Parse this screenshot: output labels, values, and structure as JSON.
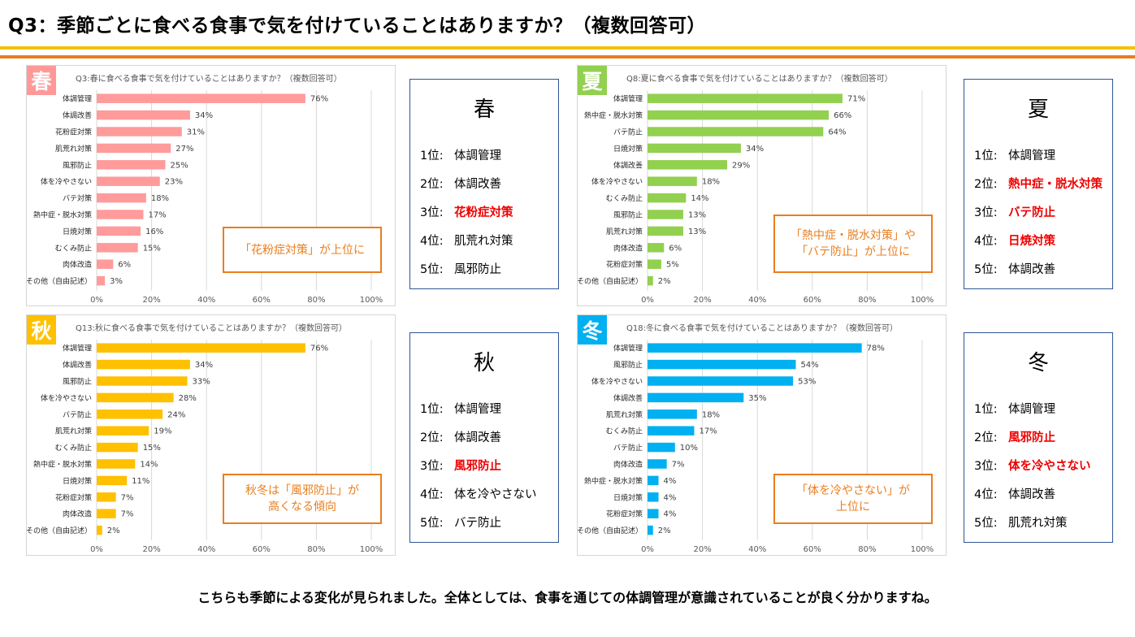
{
  "title": "Q3：季節ごとに食べる食事で気を付けていることはありますか？（複数回答可）",
  "footer": "こちらも季節による変化が見られました。全体としては、食事を通じての体調管理が意識されていることが良く分かりますね。",
  "rank_suffix": "位:",
  "axis_ticks": [
    "0%",
    "20%",
    "40%",
    "60%",
    "80%",
    "100%"
  ],
  "seasons": [
    {
      "key": "spring",
      "badge": "春",
      "color": "#ff9b9b",
      "badge_color": "#ff9999",
      "chart_title": "Q3:春に食べる食事で気を付けていることはありますか？（複数回答可）",
      "callout": [
        "「花粉症対策」が上位に"
      ],
      "rank_title": "春",
      "ranking": [
        {
          "rank": "1",
          "label": "体調管理",
          "highlight": false
        },
        {
          "rank": "2",
          "label": "体調改善",
          "highlight": false
        },
        {
          "rank": "3",
          "label": "花粉症対策",
          "highlight": true
        },
        {
          "rank": "4",
          "label": "肌荒れ対策",
          "highlight": false
        },
        {
          "rank": "5",
          "label": "風邪防止",
          "highlight": false
        }
      ]
    },
    {
      "key": "summer",
      "badge": "夏",
      "color": "#92d050",
      "badge_color": "#92d050",
      "chart_title": "Q8:夏に食べる食事で気を付けていることはありますか？（複数回答可）",
      "callout": [
        "「熱中症・脱水対策」や",
        "「バテ防止」が上位に"
      ],
      "rank_title": "夏",
      "ranking": [
        {
          "rank": "1",
          "label": "体調管理",
          "highlight": false
        },
        {
          "rank": "2",
          "label": "熱中症・脱水対策",
          "highlight": true
        },
        {
          "rank": "3",
          "label": "バテ防止",
          "highlight": true
        },
        {
          "rank": "4",
          "label": "日焼対策",
          "highlight": true
        },
        {
          "rank": "5",
          "label": "体調改善",
          "highlight": false
        }
      ]
    },
    {
      "key": "autumn",
      "badge": "秋",
      "color": "#ffc000",
      "badge_color": "#ffc000",
      "chart_title": "Q13:秋に食べる食事で気を付けていることはありますか？（複数回答可）",
      "callout": [
        "秋冬は「風邪防止」が",
        "高くなる傾向"
      ],
      "rank_title": "秋",
      "ranking": [
        {
          "rank": "1",
          "label": "体調管理",
          "highlight": false
        },
        {
          "rank": "2",
          "label": "体調改善",
          "highlight": false
        },
        {
          "rank": "3",
          "label": "風邪防止",
          "highlight": true
        },
        {
          "rank": "4",
          "label": "体を冷やさない",
          "highlight": false
        },
        {
          "rank": "5",
          "label": "バテ防止",
          "highlight": false
        }
      ]
    },
    {
      "key": "winter",
      "badge": "冬",
      "color": "#00b0f0",
      "badge_color": "#00b0f0",
      "chart_title": "Q18:冬に食べる食事で気を付けていることはありますか？（複数回答可）",
      "callout": [
        "「体を冷やさない」が",
        "上位に"
      ],
      "rank_title": "冬",
      "ranking": [
        {
          "rank": "1",
          "label": "体調管理",
          "highlight": false
        },
        {
          "rank": "2",
          "label": "風邪防止",
          "highlight": true
        },
        {
          "rank": "3",
          "label": "体を冷やさない",
          "highlight": true
        },
        {
          "rank": "4",
          "label": "体調改善",
          "highlight": false
        },
        {
          "rank": "5",
          "label": "肌荒れ対策",
          "highlight": false
        }
      ]
    }
  ],
  "chart_data": [
    {
      "type": "bar",
      "orientation": "horizontal",
      "title": "Q3:春に食べる食事で気を付けていることはありますか？（複数回答可）",
      "categories": [
        "体調管理",
        "体調改善",
        "花粉症対策",
        "肌荒れ対策",
        "風邪防止",
        "体を冷やさない",
        "バテ対策",
        "熱中症・脱水対策",
        "日焼対策",
        "むくみ防止",
        "肉体改造",
        "その他（自由記述）"
      ],
      "values": [
        76,
        34,
        31,
        27,
        25,
        23,
        18,
        17,
        16,
        15,
        6,
        3
      ],
      "labels": [
        "76%",
        "34%",
        "31%",
        "27%",
        "25%",
        "23%",
        "18%",
        "17%",
        "16%",
        "15%",
        "6%",
        "3%"
      ],
      "xlim": [
        0,
        100
      ],
      "grid": true
    },
    {
      "type": "bar",
      "orientation": "horizontal",
      "title": "Q8:夏に食べる食事で気を付けていることはありますか？（複数回答可）",
      "categories": [
        "体調管理",
        "熱中症・脱水対策",
        "バテ防止",
        "日焼対策",
        "体調改善",
        "体を冷やさない",
        "むくみ防止",
        "風邪防止",
        "肌荒れ対策",
        "肉体改造",
        "花粉症対策",
        "その他（自由記述）"
      ],
      "values": [
        71,
        66,
        64,
        34,
        29,
        18,
        14,
        13,
        13,
        6,
        5,
        2
      ],
      "labels": [
        "71%",
        "66%",
        "64%",
        "34%",
        "29%",
        "18%",
        "14%",
        "13%",
        "13%",
        "6%",
        "5%",
        "2%"
      ],
      "xlim": [
        0,
        100
      ],
      "grid": true
    },
    {
      "type": "bar",
      "orientation": "horizontal",
      "title": "Q13:秋に食べる食事で気を付けていることはありますか？（複数回答可）",
      "categories": [
        "体調管理",
        "体調改善",
        "風邪防止",
        "体を冷やさない",
        "バテ防止",
        "肌荒れ対策",
        "むくみ防止",
        "熱中症・脱水対策",
        "日焼対策",
        "花粉症対策",
        "肉体改造",
        "その他（自由記述）"
      ],
      "values": [
        76,
        34,
        33,
        28,
        24,
        19,
        15,
        14,
        11,
        7,
        7,
        2
      ],
      "labels": [
        "76%",
        "34%",
        "33%",
        "28%",
        "24%",
        "19%",
        "15%",
        "14%",
        "11%",
        "7%",
        "7%",
        "2%"
      ],
      "xlim": [
        0,
        100
      ],
      "grid": true
    },
    {
      "type": "bar",
      "orientation": "horizontal",
      "title": "Q18:冬に食べる食事で気を付けていることはありますか？（複数回答可）",
      "categories": [
        "体調管理",
        "風邪防止",
        "体を冷やさない",
        "体調改善",
        "肌荒れ対策",
        "むくみ防止",
        "バテ防止",
        "肉体改造",
        "熱中症・脱水対策",
        "日焼対策",
        "花粉症対策",
        "その他（自由記述）"
      ],
      "values": [
        78,
        54,
        53,
        35,
        18,
        17,
        10,
        7,
        4,
        4,
        4,
        2
      ],
      "labels": [
        "78%",
        "54%",
        "53%",
        "35%",
        "18%",
        "17%",
        "10%",
        "7%",
        "4%",
        "4%",
        "4%",
        "2%"
      ],
      "xlim": [
        0,
        100
      ],
      "grid": true
    }
  ]
}
